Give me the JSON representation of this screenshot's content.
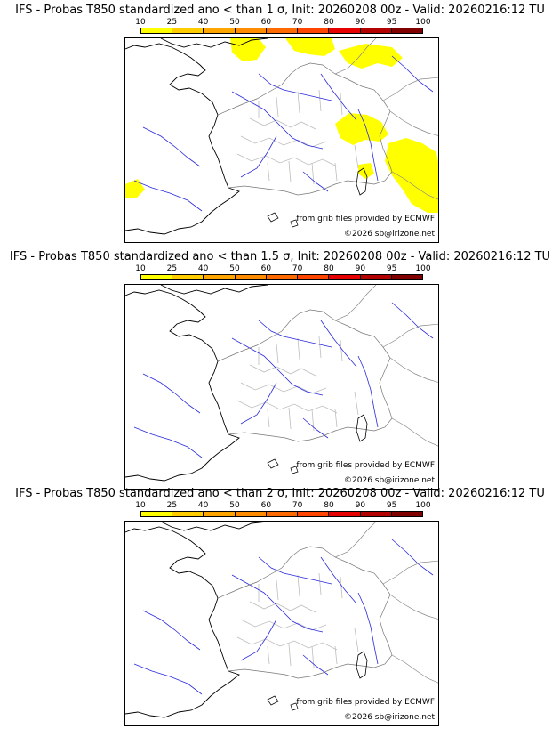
{
  "colorbar": {
    "ticks": [
      "10",
      "25",
      "40",
      "50",
      "60",
      "70",
      "80",
      "90",
      "95",
      "100"
    ],
    "colors": [
      "#ffff00",
      "#ffcc00",
      "#ffa500",
      "#ff8c00",
      "#ff6a00",
      "#ff4500",
      "#e60000",
      "#b30000",
      "#800000"
    ]
  },
  "credits": {
    "source": "from grib files provided by ECMWF",
    "copyright": "©2026 sb@irizone.net"
  },
  "panels": [
    {
      "title": "IFS - Probas T850  standardized ano < than 1 σ, Init: 20260208 00z - Valid: 20260216:12 TU",
      "has_yellow": true
    },
    {
      "title": "IFS - Probas T850  standardized ano < than 1.5 σ, Init: 20260208 00z - Valid: 20260216:12 TU",
      "has_yellow": false
    },
    {
      "title": "IFS - Probas T850  standardized ano < than 2 σ, Init: 20260208 00z - Valid: 20260216:12 TU",
      "has_yellow": false
    }
  ]
}
